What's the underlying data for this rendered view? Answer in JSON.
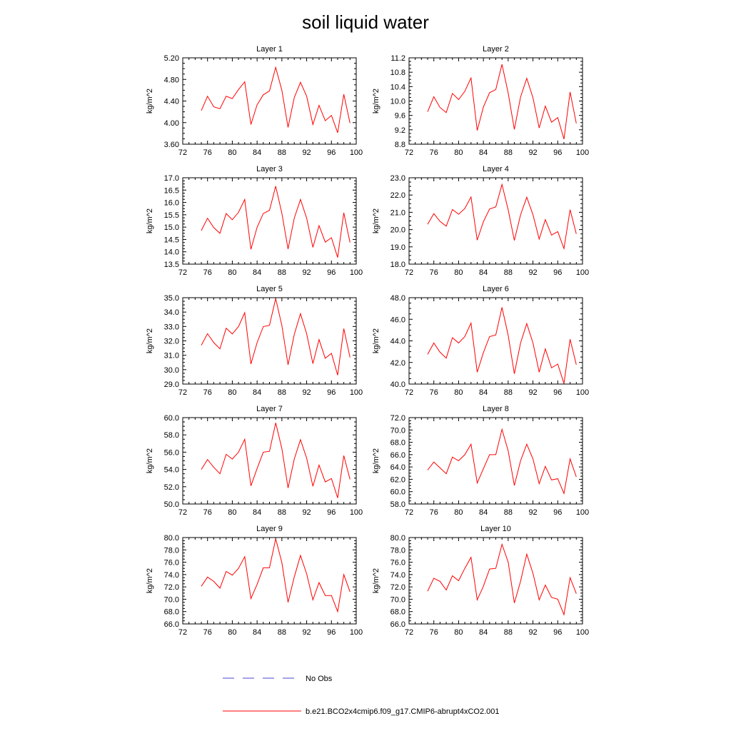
{
  "title": "soil liquid water",
  "legend": {
    "placement": "bottom-center",
    "entries": [
      {
        "label": "No Obs",
        "color": "#4a4ad0",
        "style": "dashed"
      },
      {
        "label": "b.e21.BCO2x4cmip6.f09_g17.CMIP6-abrupt4xCO2.001",
        "color": "#ff0000",
        "style": "solid"
      }
    ]
  },
  "chart_data": [
    {
      "type": "line",
      "title": "Layer 1",
      "xlabel": "",
      "ylabel": "kg/m^2",
      "xlim": [
        72,
        100
      ],
      "ylim": [
        3.6,
        5.4
      ],
      "x_ticks": [
        "72",
        "76",
        "80",
        "84",
        "88",
        "92",
        "96",
        "100"
      ],
      "y_ticks": [
        "3.60",
        "4.00",
        "4.40",
        "4.80",
        "5.20"
      ],
      "x": [
        75,
        76,
        77,
        78,
        79,
        80,
        81,
        82,
        83,
        84,
        85,
        86,
        87,
        88,
        89,
        90,
        91,
        92,
        93,
        94,
        95,
        96,
        97,
        98,
        99
      ],
      "series": [
        {
          "name": "b.e21.BCO2x4cmip6.f09_g17.CMIP6-abrupt4xCO2.001",
          "color": "#ff0000",
          "values": [
            4.3,
            4.6,
            4.38,
            4.34,
            4.6,
            4.55,
            4.74,
            4.9,
            4.01,
            4.42,
            4.63,
            4.71,
            5.2,
            4.72,
            3.95,
            4.57,
            4.89,
            4.6,
            4.01,
            4.41,
            4.09,
            4.2,
            3.84,
            4.64,
            4.04
          ]
        }
      ]
    },
    {
      "type": "line",
      "title": "Layer 2",
      "xlabel": "",
      "ylabel": "kg/m^2",
      "xlim": [
        72,
        100
      ],
      "ylim": [
        8.8,
        11.2
      ],
      "x_ticks": [
        "72",
        "76",
        "80",
        "84",
        "88",
        "92",
        "96",
        "100"
      ],
      "y_ticks": [
        "8.8",
        "9.2",
        "9.6",
        "10.0",
        "10.4",
        "10.8",
        "11.2"
      ],
      "x": [
        75,
        76,
        77,
        78,
        79,
        80,
        81,
        82,
        83,
        84,
        85,
        86,
        87,
        88,
        89,
        90,
        91,
        92,
        93,
        94,
        95,
        96,
        97,
        98,
        99
      ],
      "series": [
        {
          "name": "b.e21.BCO2x4cmip6.f09_g17.CMIP6-abrupt4xCO2.001",
          "color": "#ff0000",
          "values": [
            9.7,
            10.12,
            9.82,
            9.68,
            10.21,
            10.04,
            10.27,
            10.64,
            9.18,
            9.83,
            10.23,
            10.32,
            11.02,
            10.22,
            9.21,
            10.11,
            10.63,
            10.09,
            9.25,
            9.86,
            9.41,
            9.54,
            8.94,
            10.25,
            9.38
          ]
        }
      ]
    },
    {
      "type": "line",
      "title": "Layer 3",
      "xlabel": "",
      "ylabel": "kg/m^2",
      "xlim": [
        72,
        100
      ],
      "ylim": [
        13.5,
        17.0
      ],
      "x_ticks": [
        "72",
        "76",
        "80",
        "84",
        "88",
        "92",
        "96",
        "100"
      ],
      "y_ticks": [
        "13.5",
        "14.0",
        "14.5",
        "15.0",
        "15.5",
        "16.0",
        "16.5",
        "17.0"
      ],
      "x": [
        75,
        76,
        77,
        78,
        79,
        80,
        81,
        82,
        83,
        84,
        85,
        86,
        87,
        88,
        89,
        90,
        91,
        92,
        93,
        94,
        95,
        96,
        97,
        98,
        99
      ],
      "series": [
        {
          "name": "b.e21.BCO2x4cmip6.f09_g17.CMIP6-abrupt4xCO2.001",
          "color": "#ff0000",
          "values": [
            14.86,
            15.36,
            14.98,
            14.75,
            15.55,
            15.3,
            15.6,
            16.12,
            14.1,
            14.99,
            15.55,
            15.68,
            16.66,
            15.55,
            14.11,
            15.36,
            16.12,
            15.36,
            14.18,
            15.06,
            14.39,
            14.57,
            13.77,
            15.58,
            14.38
          ]
        }
      ]
    },
    {
      "type": "line",
      "title": "Layer 4",
      "xlabel": "",
      "ylabel": "kg/m^2",
      "xlim": [
        72,
        100
      ],
      "ylim": [
        18.0,
        23.0
      ],
      "x_ticks": [
        "72",
        "76",
        "80",
        "84",
        "88",
        "92",
        "96",
        "100"
      ],
      "y_ticks": [
        "18.0",
        "19.0",
        "20.0",
        "21.0",
        "22.0",
        "23.0"
      ],
      "x": [
        75,
        76,
        77,
        78,
        79,
        80,
        81,
        82,
        83,
        84,
        85,
        86,
        87,
        88,
        89,
        90,
        91,
        92,
        93,
        94,
        95,
        96,
        97,
        98,
        99
      ],
      "series": [
        {
          "name": "b.e21.BCO2x4cmip6.f09_g17.CMIP6-abrupt4xCO2.001",
          "color": "#ff0000",
          "values": [
            20.3,
            20.92,
            20.47,
            20.2,
            21.16,
            20.89,
            21.22,
            21.89,
            19.39,
            20.45,
            21.19,
            21.31,
            22.61,
            21.14,
            19.37,
            20.85,
            21.87,
            20.86,
            19.45,
            20.58,
            19.68,
            19.88,
            18.9,
            21.15,
            19.75
          ]
        }
      ]
    },
    {
      "type": "line",
      "title": "Layer 5",
      "xlabel": "",
      "ylabel": "kg/m^2",
      "xlim": [
        72,
        100
      ],
      "ylim": [
        29.0,
        35.0
      ],
      "x_ticks": [
        "72",
        "76",
        "80",
        "84",
        "88",
        "92",
        "96",
        "100"
      ],
      "y_ticks": [
        "29.0",
        "30.0",
        "31.0",
        "32.0",
        "33.0",
        "34.0",
        "35.0"
      ],
      "x": [
        75,
        76,
        77,
        78,
        79,
        80,
        81,
        82,
        83,
        84,
        85,
        86,
        87,
        88,
        89,
        90,
        91,
        92,
        93,
        94,
        95,
        96,
        97,
        98,
        99
      ],
      "series": [
        {
          "name": "b.e21.BCO2x4cmip6.f09_g17.CMIP6-abrupt4xCO2.001",
          "color": "#ff0000",
          "values": [
            31.7,
            32.5,
            31.88,
            31.45,
            32.88,
            32.48,
            32.99,
            33.96,
            30.4,
            31.87,
            32.99,
            33.08,
            34.94,
            33.05,
            30.34,
            32.44,
            33.89,
            32.49,
            30.42,
            32.09,
            30.79,
            31.13,
            29.62,
            32.85,
            30.85
          ]
        }
      ]
    },
    {
      "type": "line",
      "title": "Layer 6",
      "xlabel": "",
      "ylabel": "kg/m^2",
      "xlim": [
        72,
        100
      ],
      "ylim": [
        40.0,
        48.0
      ],
      "x_ticks": [
        "72",
        "76",
        "80",
        "84",
        "88",
        "92",
        "96",
        "100"
      ],
      "y_ticks": [
        "40.0",
        "42.0",
        "44.0",
        "46.0",
        "48.0"
      ],
      "x": [
        75,
        76,
        77,
        78,
        79,
        80,
        81,
        82,
        83,
        84,
        85,
        86,
        87,
        88,
        89,
        90,
        91,
        92,
        93,
        94,
        95,
        96,
        97,
        98,
        99
      ],
      "series": [
        {
          "name": "b.e21.BCO2x4cmip6.f09_g17.CMIP6-abrupt4xCO2.001",
          "color": "#ff0000",
          "values": [
            42.75,
            43.8,
            42.95,
            42.4,
            44.3,
            43.8,
            44.4,
            45.65,
            41.1,
            42.9,
            44.4,
            44.55,
            47.1,
            44.5,
            40.95,
            43.8,
            45.6,
            43.8,
            41.1,
            43.25,
            41.5,
            41.85,
            40.05,
            44.15,
            41.8
          ]
        }
      ]
    },
    {
      "type": "line",
      "title": "Layer 7",
      "xlabel": "",
      "ylabel": "kg/m^2",
      "xlim": [
        72,
        100
      ],
      "ylim": [
        50.0,
        60.0
      ],
      "x_ticks": [
        "72",
        "76",
        "80",
        "84",
        "88",
        "92",
        "96",
        "100"
      ],
      "y_ticks": [
        "50.0",
        "52.0",
        "54.0",
        "56.0",
        "58.0",
        "60.0"
      ],
      "x": [
        75,
        76,
        77,
        78,
        79,
        80,
        81,
        82,
        83,
        84,
        85,
        86,
        87,
        88,
        89,
        90,
        91,
        92,
        93,
        94,
        95,
        96,
        97,
        98,
        99
      ],
      "series": [
        {
          "name": "b.e21.BCO2x4cmip6.f09_g17.CMIP6-abrupt4xCO2.001",
          "color": "#ff0000",
          "values": [
            54.0,
            55.15,
            54.25,
            53.5,
            55.75,
            55.2,
            56.0,
            57.5,
            52.1,
            54.1,
            56.0,
            56.1,
            59.4,
            56.4,
            51.85,
            55.2,
            57.45,
            55.3,
            52.05,
            54.5,
            52.55,
            52.95,
            50.7,
            55.6,
            52.85
          ]
        }
      ]
    },
    {
      "type": "line",
      "title": "Layer 8",
      "xlabel": "",
      "ylabel": "kg/m^2",
      "xlim": [
        72,
        100
      ],
      "ylim": [
        58.0,
        72.0
      ],
      "x_ticks": [
        "72",
        "76",
        "80",
        "84",
        "88",
        "92",
        "96",
        "100"
      ],
      "y_ticks": [
        "58.0",
        "60.0",
        "62.0",
        "64.0",
        "66.0",
        "68.0",
        "70.0",
        "72.0"
      ],
      "x": [
        75,
        76,
        77,
        78,
        79,
        80,
        81,
        82,
        83,
        84,
        85,
        86,
        87,
        88,
        89,
        90,
        91,
        92,
        93,
        94,
        95,
        96,
        97,
        98,
        99
      ],
      "series": [
        {
          "name": "b.e21.BCO2x4cmip6.f09_g17.CMIP6-abrupt4xCO2.001",
          "color": "#ff0000",
          "values": [
            63.5,
            64.8,
            63.85,
            62.9,
            65.6,
            65.0,
            66.0,
            67.7,
            61.4,
            63.7,
            66.0,
            66.0,
            70.1,
            66.6,
            61.0,
            65.0,
            67.7,
            65.3,
            61.3,
            64.1,
            61.9,
            62.1,
            59.7,
            65.3,
            62.4
          ]
        }
      ]
    },
    {
      "type": "line",
      "title": "Layer 9",
      "xlabel": "",
      "ylabel": "kg/m^2",
      "xlim": [
        72,
        100
      ],
      "ylim": [
        66.0,
        80.0
      ],
      "x_ticks": [
        "72",
        "76",
        "80",
        "84",
        "88",
        "92",
        "96",
        "100"
      ],
      "y_ticks": [
        "66.0",
        "68.0",
        "70.0",
        "72.0",
        "74.0",
        "76.0",
        "78.0",
        "80.0"
      ],
      "x": [
        75,
        76,
        77,
        78,
        79,
        80,
        81,
        82,
        83,
        84,
        85,
        86,
        87,
        88,
        89,
        90,
        91,
        92,
        93,
        94,
        95,
        96,
        97,
        98,
        99
      ],
      "series": [
        {
          "name": "b.e21.BCO2x4cmip6.f09_g17.CMIP6-abrupt4xCO2.001",
          "color": "#ff0000",
          "values": [
            72.1,
            73.6,
            72.9,
            71.8,
            74.5,
            73.9,
            75.0,
            76.9,
            70.1,
            72.4,
            75.1,
            75.1,
            79.8,
            75.9,
            69.5,
            73.6,
            77.1,
            74.1,
            69.9,
            72.7,
            70.6,
            70.6,
            68.0,
            74.0,
            71.2
          ]
        }
      ]
    },
    {
      "type": "line",
      "title": "Layer 10",
      "xlabel": "",
      "ylabel": "kg/m^2",
      "xlim": [
        72,
        100
      ],
      "ylim": [
        66.0,
        80.0
      ],
      "x_ticks": [
        "72",
        "76",
        "80",
        "84",
        "88",
        "92",
        "96",
        "100"
      ],
      "y_ticks": [
        "66.0",
        "68.0",
        "70.0",
        "72.0",
        "74.0",
        "76.0",
        "78.0",
        "80.0"
      ],
      "x": [
        75,
        76,
        77,
        78,
        79,
        80,
        81,
        82,
        83,
        84,
        85,
        86,
        87,
        88,
        89,
        90,
        91,
        92,
        93,
        94,
        95,
        96,
        97,
        98,
        99
      ],
      "series": [
        {
          "name": "b.e21.BCO2x4cmip6.f09_g17.CMIP6-abrupt4xCO2.001",
          "color": "#ff0000",
          "values": [
            71.3,
            73.4,
            72.9,
            71.5,
            73.8,
            73.0,
            75.0,
            76.8,
            69.9,
            72.1,
            74.9,
            75.0,
            78.9,
            76.0,
            69.4,
            72.9,
            77.3,
            74.2,
            69.9,
            72.3,
            70.3,
            70.0,
            67.5,
            73.5,
            70.9
          ]
        }
      ]
    }
  ]
}
